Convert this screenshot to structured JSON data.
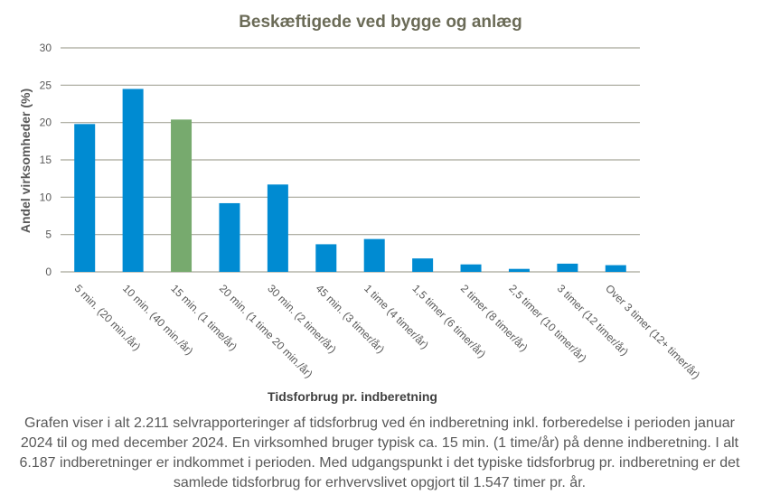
{
  "chart_data": {
    "type": "bar",
    "title": "Beskæftigede  ved bygge og anlæg",
    "xlabel": "Tidsforbrug pr. indberetning",
    "ylabel": "Andel virksomheder  (%)",
    "ylim": [
      0,
      30
    ],
    "yticks": [
      0,
      5,
      10,
      15,
      20,
      25,
      30
    ],
    "grid": true,
    "categories": [
      "5 min. (20 min./år)",
      "10 min. (40 min./år)",
      "15 min. (1 time/år)",
      "20 min. (1 time 20 min./år)",
      "30 min. (2 timer/år)",
      "45 min. (3 timer/år)",
      "1 time (4 timer/år)",
      "1,5 timer (6 timer/år)",
      "2 timer (8 timer/år)",
      "2,5 timer (10 timer/år)",
      "3 timer (12 timer/år)",
      "Over 3 timer (12+ timer/år)"
    ],
    "values": [
      19.8,
      24.5,
      20.4,
      9.2,
      11.7,
      3.7,
      4.4,
      1.8,
      1.0,
      0.4,
      1.1,
      0.9
    ],
    "highlight_index": 2,
    "colors": {
      "bar": "#008bd2",
      "highlight": "#77aa6e",
      "grid": "#a6a69a",
      "tick_text": "#595959"
    }
  },
  "caption": "Grafen viser i alt 2.211 selvrapporteringer af tidsforbrug ved én indberetning inkl. forberedelse i perioden januar 2024 til og med december 2024. En virksomhed bruger typisk ca. 15 min. (1 time/år) på denne indberetning. I alt 6.187 indberetninger er indkommet i perioden. Med udgangspunkt i det typiske tidsforbrug pr. indberetning er det samlede tidsforbrug for erhvervslivet opgjort til 1.547 timer pr. år."
}
